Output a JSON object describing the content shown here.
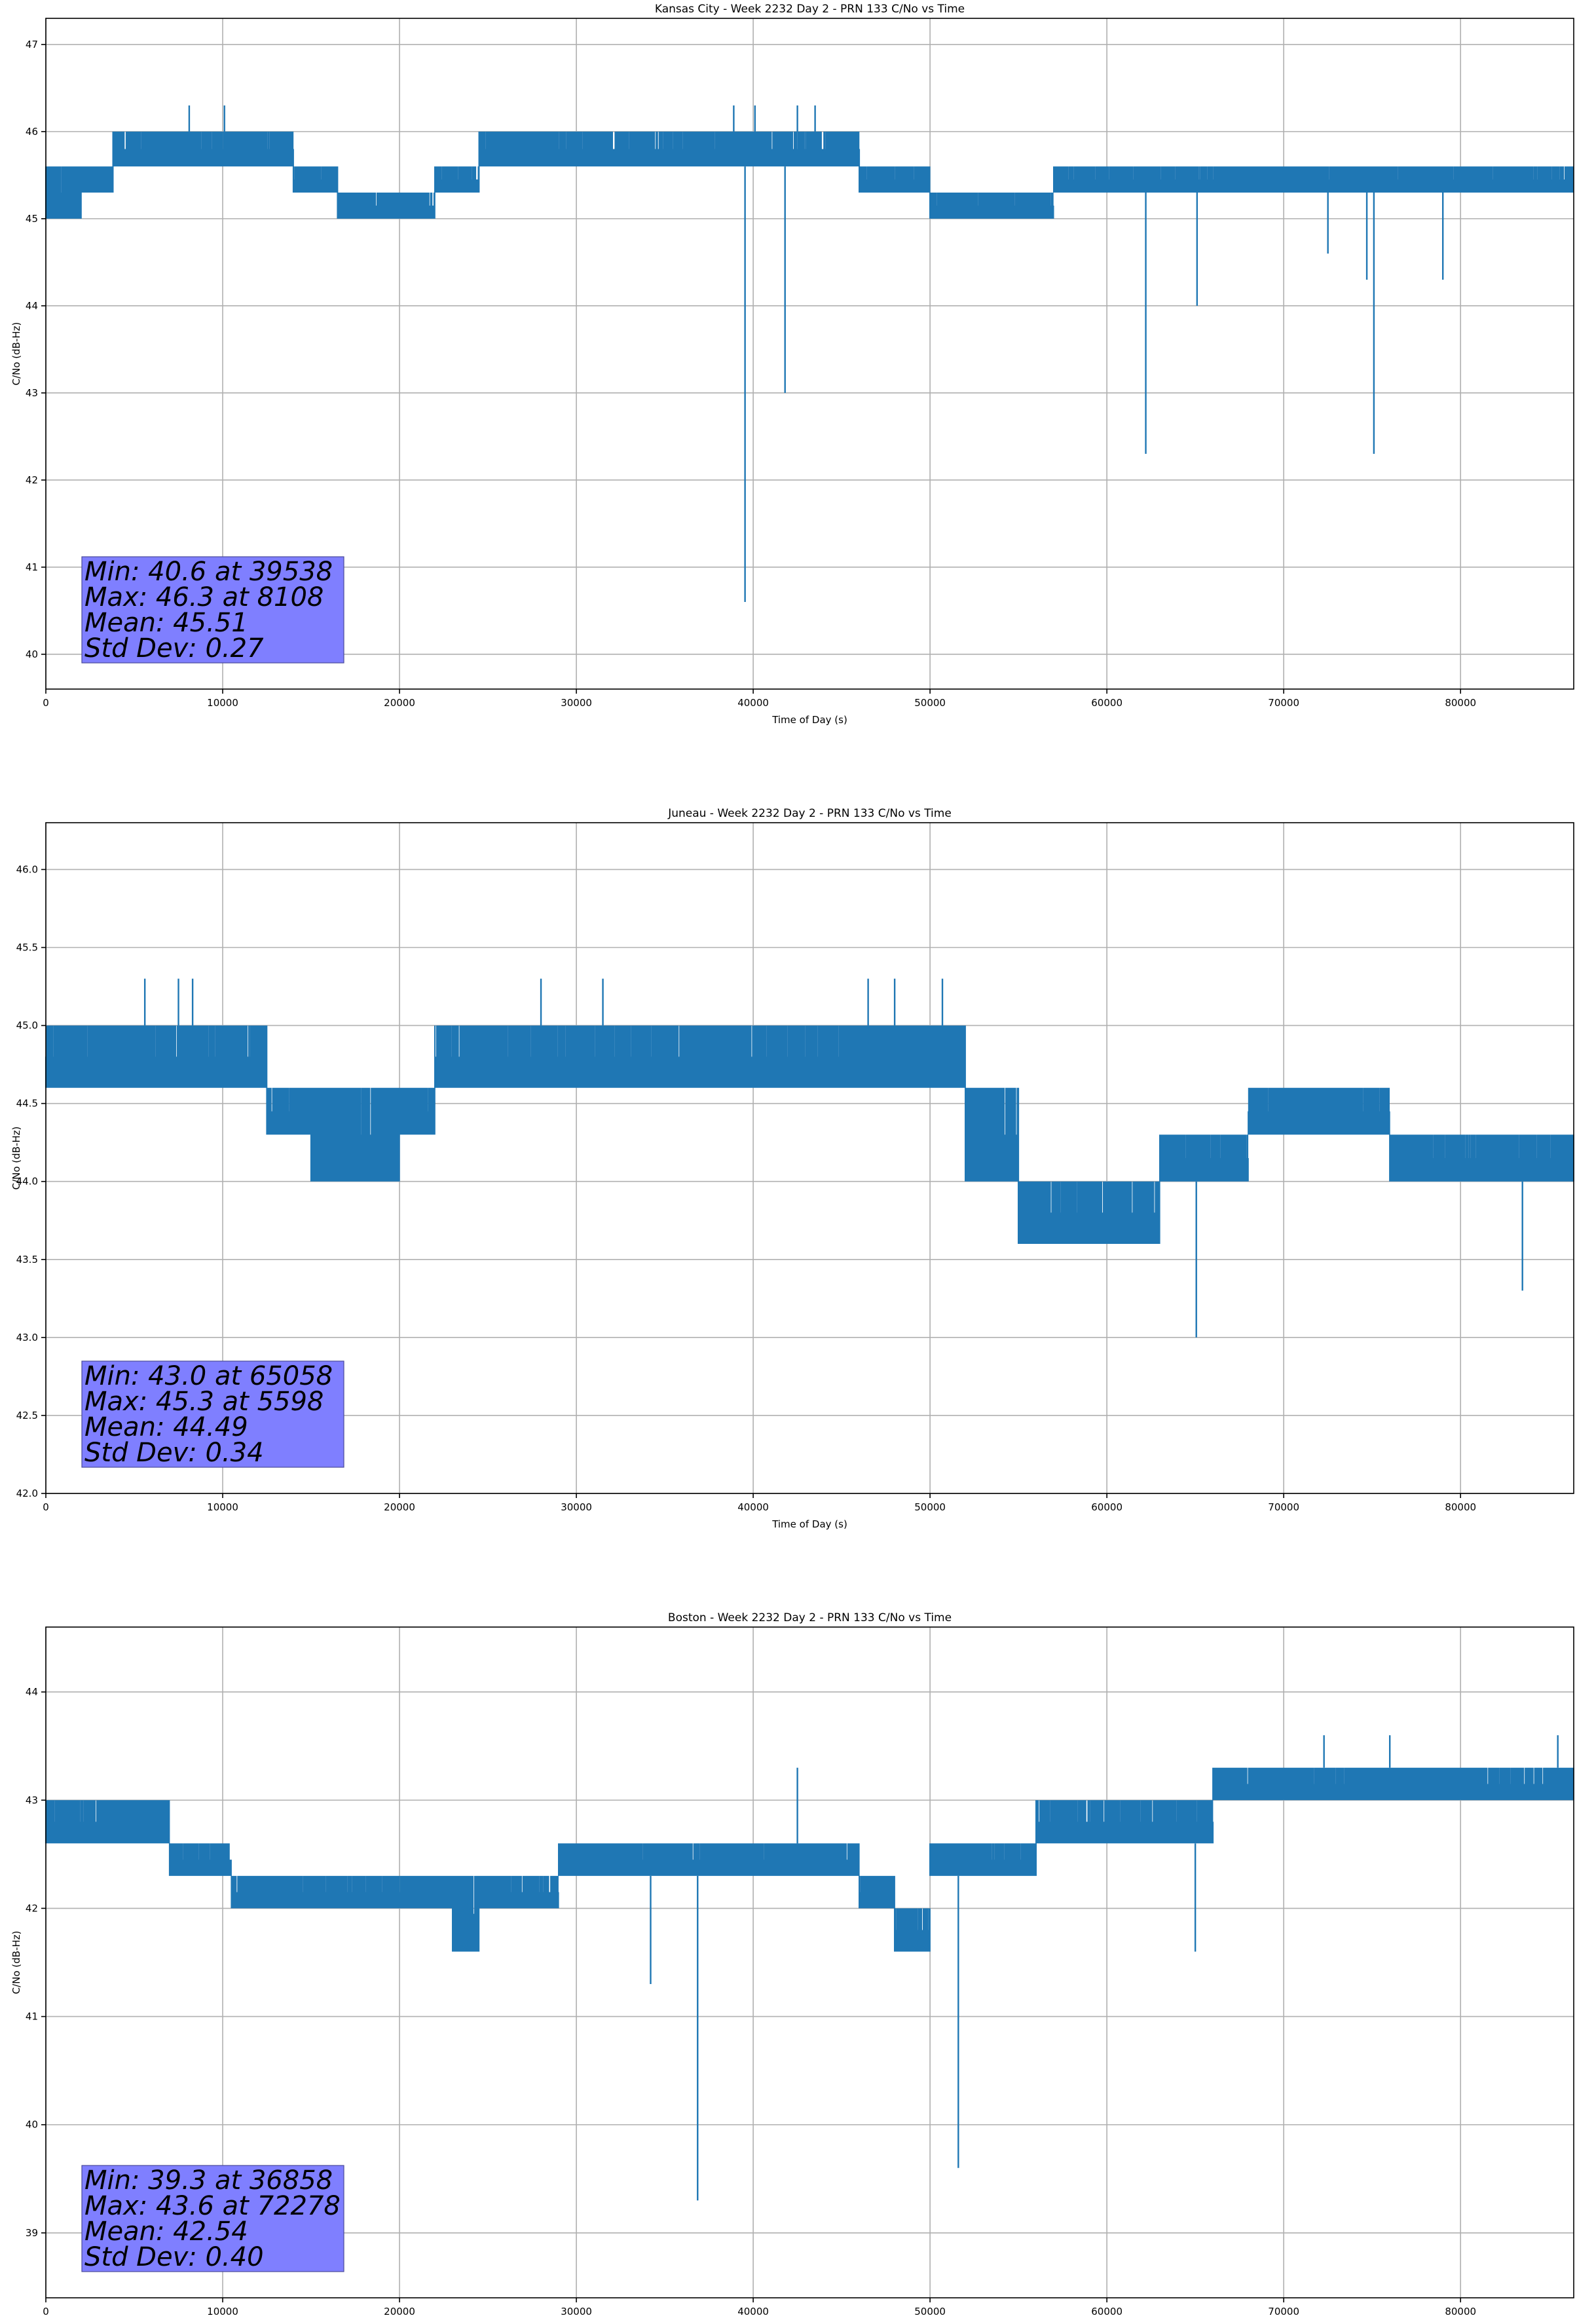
{
  "chart_data": [
    {
      "type": "line",
      "title": "Kansas City - Week 2232 Day 2 - PRN 133 C/No vs Time",
      "xlabel": "Time of Day (s)",
      "ylabel": "C/No (dB-Hz)",
      "xlim": [
        0,
        86400
      ],
      "ylim": [
        39.6,
        47.3
      ],
      "xticks": [
        0,
        10000,
        20000,
        30000,
        40000,
        50000,
        60000,
        70000,
        80000
      ],
      "yticks": [
        40,
        41,
        42,
        43,
        44,
        45,
        46,
        47
      ],
      "ytick_labels": [
        "40",
        "41",
        "42",
        "43",
        "44",
        "45",
        "46",
        "47"
      ],
      "grid": true,
      "color": "#1f77b4",
      "stats_box": [
        "Min: 40.6 at 39538",
        "Max: 46.3 at 8108",
        "Mean: 45.51",
        "Std Dev: 0.27"
      ],
      "series": [
        {
          "bands": [
            {
              "x": [
                0,
                2000
              ],
              "lo": 45.0,
              "hi": 45.6
            },
            {
              "x": [
                2000,
                3800
              ],
              "lo": 45.3,
              "hi": 45.6
            },
            {
              "x": [
                3800,
                14000
              ],
              "lo": 45.6,
              "hi": 46.0
            },
            {
              "x": [
                14000,
                16500
              ],
              "lo": 45.3,
              "hi": 45.6
            },
            {
              "x": [
                16500,
                22000
              ],
              "lo": 45.0,
              "hi": 45.3
            },
            {
              "x": [
                22000,
                24500
              ],
              "lo": 45.3,
              "hi": 45.6
            },
            {
              "x": [
                24500,
                39500
              ],
              "lo": 45.6,
              "hi": 46.0
            },
            {
              "x": [
                39500,
                46000
              ],
              "lo": 45.6,
              "hi": 46.0
            },
            {
              "x": [
                46000,
                50000
              ],
              "lo": 45.3,
              "hi": 45.6
            },
            {
              "x": [
                50000,
                57000
              ],
              "lo": 45.0,
              "hi": 45.3
            },
            {
              "x": [
                57000,
                86400
              ],
              "lo": 45.3,
              "hi": 45.6
            }
          ],
          "spikes": [
            {
              "x": 8108,
              "y": 46.3
            },
            {
              "x": 10100,
              "y": 46.3
            },
            {
              "x": 38900,
              "y": 46.3
            },
            {
              "x": 40100,
              "y": 46.3
            },
            {
              "x": 42500,
              "y": 46.3
            },
            {
              "x": 43500,
              "y": 46.3
            },
            {
              "x": 39538,
              "y": 40.6
            },
            {
              "x": 41800,
              "y": 43.0
            },
            {
              "x": 62200,
              "y": 42.3
            },
            {
              "x": 65100,
              "y": 44.0
            },
            {
              "x": 72500,
              "y": 44.6
            },
            {
              "x": 74700,
              "y": 44.3
            },
            {
              "x": 75100,
              "y": 42.3
            },
            {
              "x": 79000,
              "y": 44.3
            }
          ]
        }
      ]
    },
    {
      "type": "line",
      "title": "Juneau - Week 2232 Day 2 - PRN 133 C/No vs Time",
      "xlabel": "Time of Day (s)",
      "ylabel": "C/No (dB-Hz)",
      "xlim": [
        0,
        86400
      ],
      "ylim": [
        42.0,
        46.3
      ],
      "xticks": [
        0,
        10000,
        20000,
        30000,
        40000,
        50000,
        60000,
        70000,
        80000
      ],
      "yticks": [
        42.0,
        42.5,
        43.0,
        43.5,
        44.0,
        44.5,
        45.0,
        45.5,
        46.0
      ],
      "ytick_labels": [
        "42.0",
        "42.5",
        "43.0",
        "43.5",
        "44.0",
        "44.5",
        "45.0",
        "45.5",
        "46.0"
      ],
      "grid": true,
      "color": "#1f77b4",
      "stats_box": [
        "Min: 43.0 at 65058",
        "Max: 45.3 at 5598",
        "Mean: 44.49",
        "Std Dev: 0.34"
      ],
      "series": [
        {
          "bands": [
            {
              "x": [
                0,
                12500
              ],
              "lo": 44.6,
              "hi": 45.0
            },
            {
              "x": [
                12500,
                15000
              ],
              "lo": 44.3,
              "hi": 44.6
            },
            {
              "x": [
                15000,
                20000
              ],
              "lo": 44.0,
              "hi": 44.6
            },
            {
              "x": [
                20000,
                22000
              ],
              "lo": 44.3,
              "hi": 44.6
            },
            {
              "x": [
                22000,
                52000
              ],
              "lo": 44.6,
              "hi": 45.0
            },
            {
              "x": [
                52000,
                55000
              ],
              "lo": 44.0,
              "hi": 44.6
            },
            {
              "x": [
                55000,
                59000
              ],
              "lo": 43.6,
              "hi": 44.0
            },
            {
              "x": [
                59000,
                63000
              ],
              "lo": 43.6,
              "hi": 44.0
            },
            {
              "x": [
                63000,
                68000
              ],
              "lo": 44.0,
              "hi": 44.3
            },
            {
              "x": [
                68000,
                76000
              ],
              "lo": 44.3,
              "hi": 44.6
            },
            {
              "x": [
                76000,
                86400
              ],
              "lo": 44.0,
              "hi": 44.3
            }
          ],
          "spikes": [
            {
              "x": 5598,
              "y": 45.3
            },
            {
              "x": 7500,
              "y": 45.3
            },
            {
              "x": 8300,
              "y": 45.3
            },
            {
              "x": 28000,
              "y": 45.3
            },
            {
              "x": 31500,
              "y": 45.3
            },
            {
              "x": 46500,
              "y": 45.3
            },
            {
              "x": 48000,
              "y": 45.3
            },
            {
              "x": 50700,
              "y": 45.3
            },
            {
              "x": 65058,
              "y": 43.0
            },
            {
              "x": 83500,
              "y": 43.3
            }
          ]
        }
      ]
    },
    {
      "type": "line",
      "title": "Boston - Week 2232 Day 2 - PRN 133 C/No vs Time",
      "xlabel": "Time of Day (s)",
      "ylabel": "C/No (dB-Hz)",
      "xlim": [
        0,
        86400
      ],
      "ylim": [
        38.4,
        44.6
      ],
      "xticks": [
        0,
        10000,
        20000,
        30000,
        40000,
        50000,
        60000,
        70000,
        80000
      ],
      "yticks": [
        39,
        40,
        41,
        42,
        43,
        44
      ],
      "ytick_labels": [
        "39",
        "40",
        "41",
        "42",
        "43",
        "44"
      ],
      "grid": true,
      "color": "#1f77b4",
      "stats_box": [
        "Min: 39.3 at 36858",
        "Max: 43.6 at 72278",
        "Mean: 42.54",
        "Std Dev: 0.40"
      ],
      "series": [
        {
          "bands": [
            {
              "x": [
                0,
                7000
              ],
              "lo": 42.6,
              "hi": 43.0
            },
            {
              "x": [
                7000,
                10500
              ],
              "lo": 42.3,
              "hi": 42.6
            },
            {
              "x": [
                10500,
                23000
              ],
              "lo": 42.0,
              "hi": 42.3
            },
            {
              "x": [
                23000,
                24500
              ],
              "lo": 41.6,
              "hi": 42.3
            },
            {
              "x": [
                24500,
                29000
              ],
              "lo": 42.0,
              "hi": 42.3
            },
            {
              "x": [
                29000,
                35000
              ],
              "lo": 42.3,
              "hi": 42.6
            },
            {
              "x": [
                35000,
                46000
              ],
              "lo": 42.3,
              "hi": 42.6
            },
            {
              "x": [
                46000,
                48000
              ],
              "lo": 42.0,
              "hi": 42.3
            },
            {
              "x": [
                48000,
                50000
              ],
              "lo": 41.6,
              "hi": 42.0
            },
            {
              "x": [
                50000,
                56000
              ],
              "lo": 42.3,
              "hi": 42.6
            },
            {
              "x": [
                56000,
                66000
              ],
              "lo": 42.6,
              "hi": 43.0
            },
            {
              "x": [
                66000,
                86400
              ],
              "lo": 43.0,
              "hi": 43.3
            }
          ],
          "spikes": [
            {
              "x": 36858,
              "y": 39.3
            },
            {
              "x": 51600,
              "y": 39.6
            },
            {
              "x": 34200,
              "y": 41.3
            },
            {
              "x": 65000,
              "y": 41.6
            },
            {
              "x": 72278,
              "y": 43.6
            },
            {
              "x": 76000,
              "y": 43.6
            },
            {
              "x": 85500,
              "y": 43.6
            },
            {
              "x": 42500,
              "y": 43.3
            }
          ]
        }
      ]
    }
  ]
}
